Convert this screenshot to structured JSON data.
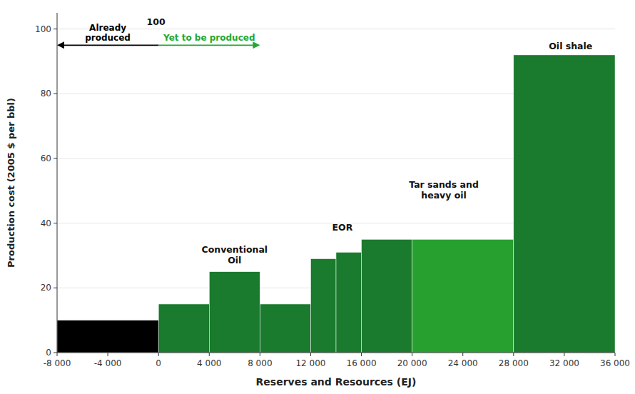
{
  "chart_data": {
    "type": "histogram",
    "xlabel": "Reserves and Resources (EJ)",
    "ylabel": "Production cost (2005 $ per bbl)",
    "bins": [
      -8000,
      0,
      4000,
      8000,
      12000,
      14000,
      16000,
      20000,
      28000,
      36000
    ],
    "values": [
      10,
      15,
      25,
      15,
      29,
      31,
      35,
      35,
      92
    ],
    "colors": [
      "#000000",
      "#1a7a2e",
      "#1a7a2e",
      "#1a7a2e",
      "#1a7a2e",
      "#1a7a2e",
      "#1a7a2e",
      "#28a030",
      "#1a7a2e"
    ],
    "xlim": [
      -8000,
      36000
    ],
    "ylim": [
      0,
      105
    ],
    "xticks": [
      {
        "value": -8000,
        "label": "-8 000"
      },
      {
        "value": -4000,
        "label": "-4 000"
      },
      0,
      {
        "value": 4000,
        "label": "4 000"
      },
      {
        "value": 8000,
        "label": "8 000"
      },
      {
        "value": 12000,
        "label": "12 000"
      },
      {
        "value": 16000,
        "label": "16 000"
      },
      {
        "value": 20000,
        "label": "20 000"
      },
      {
        "value": 24000,
        "label": "24 000"
      },
      {
        "value": 28000,
        "label": "28 000"
      },
      {
        "value": 32000,
        "label": "32 000"
      },
      {
        "value": 36000,
        "label": "36 000"
      }
    ],
    "yticks": [
      0,
      20,
      40,
      60,
      80,
      100
    ],
    "arrows": [
      {
        "text": "Already\nproduced",
        "x": 0,
        "x_end": -8000,
        "y": 95,
        "color": "#000000"
      },
      {
        "text": "Yet to be produced",
        "x": 0,
        "x_end": 8000,
        "y": 95,
        "color": "#22a832"
      }
    ],
    "annotations": [
      {
        "text": "100",
        "x": -200,
        "y": 100.5
      },
      {
        "text": "Conventional\nOil",
        "x": 6000,
        "y": 27
      },
      {
        "text": "EOR",
        "x": 14500,
        "y": 37
      },
      {
        "text": "Tar sands and\nheavy oil",
        "x": 22500,
        "y": 47
      },
      {
        "text": "Oil shale",
        "x": 32500,
        "y": 93
      }
    ]
  }
}
